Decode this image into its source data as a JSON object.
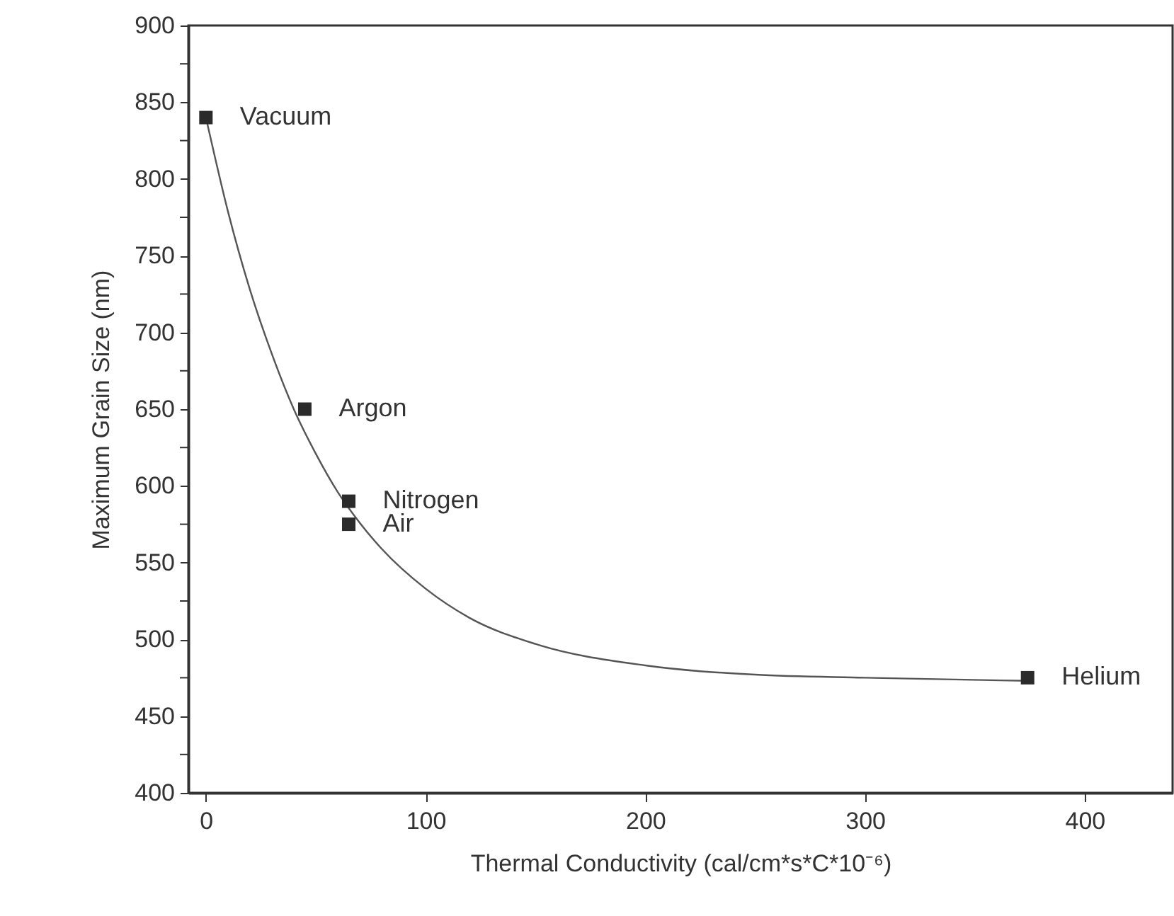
{
  "chart_data": {
    "type": "scatter",
    "xlabel": "Thermal Conductivity (cal/cm*s*C*10⁻⁶)",
    "ylabel": "Maximum Grain Size (nm)",
    "xlim": [
      -8,
      440
    ],
    "xticks": [
      0,
      100,
      200,
      300,
      400
    ],
    "ylim": [
      400,
      900
    ],
    "yticks": [
      400,
      {
        "value": 425,
        "label": null
      },
      450,
      {
        "value": 475,
        "label": null
      },
      500,
      {
        "value": 525,
        "label": null
      },
      550,
      {
        "value": 575,
        "label": null
      },
      600,
      {
        "value": 625,
        "label": null
      },
      650,
      {
        "value": 675,
        "label": null
      },
      700,
      {
        "value": 725,
        "label": null
      },
      750,
      {
        "value": 775,
        "label": null
      },
      800,
      {
        "value": 825,
        "label": null
      },
      850,
      {
        "value": 875,
        "label": null
      },
      900
    ],
    "grid": false,
    "series": [
      {
        "type": "line",
        "color": "#555555",
        "line_style": "solid",
        "marker": "none",
        "x": [
          0,
          10,
          20,
          30,
          40,
          50,
          60,
          70,
          80,
          100,
          120,
          150,
          200,
          250,
          300,
          374
        ],
        "values": [
          840,
          779,
          728,
          686,
          650,
          621,
          596,
          576,
          559,
          533,
          514,
          497,
          483,
          477,
          475,
          473
        ]
      },
      {
        "type": "scatter",
        "color": "#2b2b2b",
        "marker": "square",
        "x": [
          0,
          45,
          65,
          65,
          374
        ],
        "values": [
          840,
          650,
          590,
          575,
          475
        ]
      }
    ],
    "annotations": [
      {
        "text": "Vacuum",
        "x": 0,
        "y": 840
      },
      {
        "text": "Argon",
        "x": 45,
        "y": 650
      },
      {
        "text": "Nitrogen",
        "x": 65,
        "y": 590
      },
      {
        "text": "Air",
        "x": 65,
        "y": 575
      },
      {
        "text": "Helium",
        "x": 374,
        "y": 475
      }
    ]
  }
}
